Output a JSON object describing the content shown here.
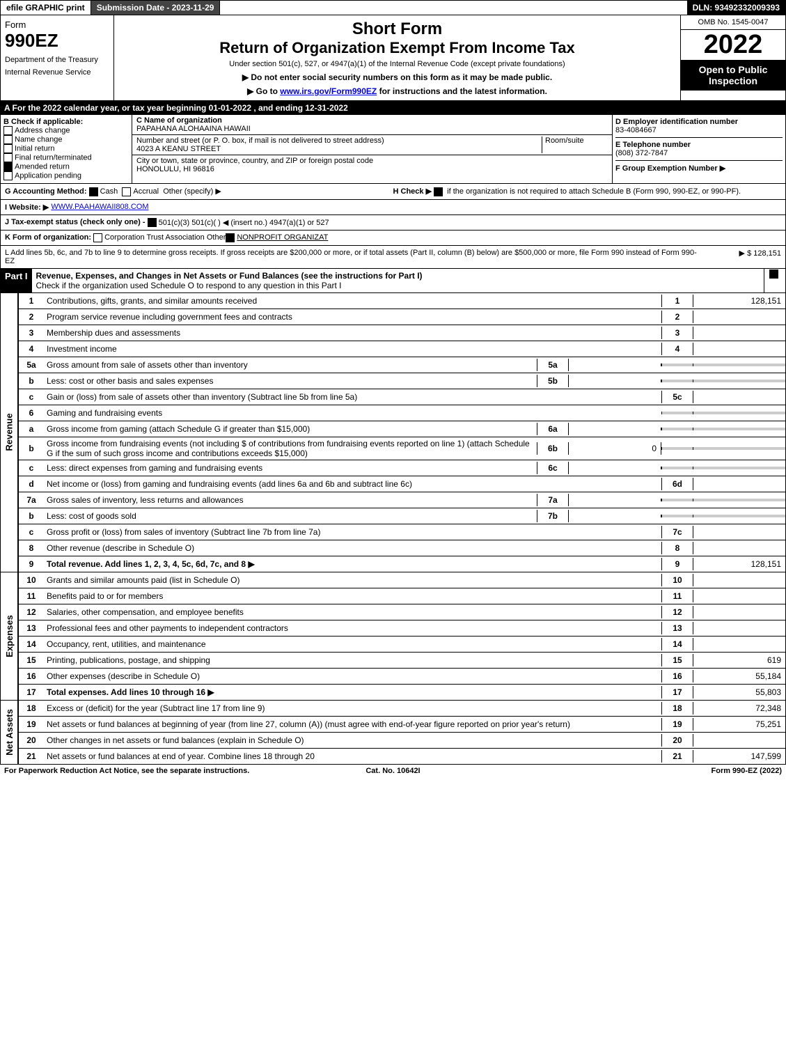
{
  "top": {
    "efile": "efile GRAPHIC print",
    "submission": "Submission Date - 2023-11-29",
    "dln": "DLN: 93492332009393"
  },
  "header": {
    "form_word": "Form",
    "form_num": "990EZ",
    "dept": "Department of the Treasury",
    "irs": "Internal Revenue Service",
    "short_form": "Short Form",
    "title": "Return of Organization Exempt From Income Tax",
    "sub1": "Under section 501(c), 527, or 4947(a)(1) of the Internal Revenue Code (except private foundations)",
    "sub2a": "▶ Do not enter social security numbers on this form as it may be made public.",
    "sub2b_pre": "▶ Go to ",
    "sub2b_link": "www.irs.gov/Form990EZ",
    "sub2b_post": " for instructions and the latest information.",
    "omb": "OMB No. 1545-0047",
    "year": "2022",
    "open": "Open to Public Inspection"
  },
  "lineA": "A  For the 2022 calendar year, or tax year beginning 01-01-2022 , and ending 12-31-2022",
  "B": {
    "label": "B  Check if applicable:",
    "addr": "Address change",
    "name": "Name change",
    "initial": "Initial return",
    "final": "Final return/terminated",
    "amended": "Amended return",
    "pending": "Application pending"
  },
  "C": {
    "name_label": "C Name of organization",
    "name": "PAPAHANA ALOHAAINA HAWAII",
    "street_label": "Number and street (or P. O. box, if mail is not delivered to street address)",
    "room_label": "Room/suite",
    "street": "4023 A KEANU STREET",
    "city_label": "City or town, state or province, country, and ZIP or foreign postal code",
    "city": "HONOLULU, HI  96816"
  },
  "D": {
    "label": "D Employer identification number",
    "value": "83-4084667"
  },
  "E": {
    "label": "E Telephone number",
    "value": "(808) 372-7847"
  },
  "F": {
    "label": "F Group Exemption Number ▶"
  },
  "G": {
    "label": "G Accounting Method:",
    "cash": "Cash",
    "accrual": "Accrual",
    "other": "Other (specify) ▶"
  },
  "H": {
    "label": "H  Check ▶",
    "text": "if the organization is not required to attach Schedule B (Form 990, 990-EZ, or 990-PF)."
  },
  "I": {
    "label": "I Website: ▶",
    "value": "WWW.PAAHAWAII808.COM"
  },
  "J": {
    "label": "J Tax-exempt status (check only one) -",
    "opts": "501(c)(3)   501(c)(  ) ◀ (insert no.)   4947(a)(1) or   527"
  },
  "K": {
    "label": "K Form of organization:",
    "opts": "Corporation   Trust   Association   Other",
    "other_val": "NONPROFIT ORGANIZAT"
  },
  "L": {
    "text": "L Add lines 5b, 6c, and 7b to line 9 to determine gross receipts. If gross receipts are $200,000 or more, or if total assets (Part II, column (B) below) are $500,000 or more, file Form 990 instead of Form 990-EZ",
    "amount": "▶ $ 128,151"
  },
  "part1": {
    "header": "Part I",
    "title": "Revenue, Expenses, and Changes in Net Assets or Fund Balances (see the instructions for Part I)",
    "subtitle": "Check if the organization used Schedule O to respond to any question in this Part I"
  },
  "vLabels": {
    "revenue": "Revenue",
    "expenses": "Expenses",
    "netassets": "Net Assets"
  },
  "lines": {
    "1": {
      "n": "1",
      "d": "Contributions, gifts, grants, and similar amounts received",
      "rn": "1",
      "v": "128,151"
    },
    "2": {
      "n": "2",
      "d": "Program service revenue including government fees and contracts",
      "rn": "2",
      "v": ""
    },
    "3": {
      "n": "3",
      "d": "Membership dues and assessments",
      "rn": "3",
      "v": ""
    },
    "4": {
      "n": "4",
      "d": "Investment income",
      "rn": "4",
      "v": ""
    },
    "5a": {
      "n": "5a",
      "d": "Gross amount from sale of assets other than inventory",
      "in": "5a",
      "iv": ""
    },
    "5b": {
      "n": "b",
      "d": "Less: cost or other basis and sales expenses",
      "in": "5b",
      "iv": ""
    },
    "5c": {
      "n": "c",
      "d": "Gain or (loss) from sale of assets other than inventory (Subtract line 5b from line 5a)",
      "rn": "5c",
      "v": ""
    },
    "6": {
      "n": "6",
      "d": "Gaming and fundraising events"
    },
    "6a": {
      "n": "a",
      "d": "Gross income from gaming (attach Schedule G if greater than $15,000)",
      "in": "6a",
      "iv": ""
    },
    "6b": {
      "n": "b",
      "d": "Gross income from fundraising events (not including $               of contributions from fundraising events reported on line 1) (attach Schedule G if the sum of such gross income and contributions exceeds $15,000)",
      "in": "6b",
      "iv": "0"
    },
    "6c": {
      "n": "c",
      "d": "Less: direct expenses from gaming and fundraising events",
      "in": "6c",
      "iv": ""
    },
    "6d": {
      "n": "d",
      "d": "Net income or (loss) from gaming and fundraising events (add lines 6a and 6b and subtract line 6c)",
      "rn": "6d",
      "v": ""
    },
    "7a": {
      "n": "7a",
      "d": "Gross sales of inventory, less returns and allowances",
      "in": "7a",
      "iv": ""
    },
    "7b": {
      "n": "b",
      "d": "Less: cost of goods sold",
      "in": "7b",
      "iv": ""
    },
    "7c": {
      "n": "c",
      "d": "Gross profit or (loss) from sales of inventory (Subtract line 7b from line 7a)",
      "rn": "7c",
      "v": ""
    },
    "8": {
      "n": "8",
      "d": "Other revenue (describe in Schedule O)",
      "rn": "8",
      "v": ""
    },
    "9": {
      "n": "9",
      "d": "Total revenue. Add lines 1, 2, 3, 4, 5c, 6d, 7c, and 8   ▶",
      "rn": "9",
      "v": "128,151",
      "bold": true
    },
    "10": {
      "n": "10",
      "d": "Grants and similar amounts paid (list in Schedule O)",
      "rn": "10",
      "v": ""
    },
    "11": {
      "n": "11",
      "d": "Benefits paid to or for members",
      "rn": "11",
      "v": ""
    },
    "12": {
      "n": "12",
      "d": "Salaries, other compensation, and employee benefits",
      "rn": "12",
      "v": ""
    },
    "13": {
      "n": "13",
      "d": "Professional fees and other payments to independent contractors",
      "rn": "13",
      "v": ""
    },
    "14": {
      "n": "14",
      "d": "Occupancy, rent, utilities, and maintenance",
      "rn": "14",
      "v": ""
    },
    "15": {
      "n": "15",
      "d": "Printing, publications, postage, and shipping",
      "rn": "15",
      "v": "619"
    },
    "16": {
      "n": "16",
      "d": "Other expenses (describe in Schedule O)",
      "rn": "16",
      "v": "55,184"
    },
    "17": {
      "n": "17",
      "d": "Total expenses. Add lines 10 through 16   ▶",
      "rn": "17",
      "v": "55,803",
      "bold": true
    },
    "18": {
      "n": "18",
      "d": "Excess or (deficit) for the year (Subtract line 17 from line 9)",
      "rn": "18",
      "v": "72,348"
    },
    "19": {
      "n": "19",
      "d": "Net assets or fund balances at beginning of year (from line 27, column (A)) (must agree with end-of-year figure reported on prior year's return)",
      "rn": "19",
      "v": "75,251"
    },
    "20": {
      "n": "20",
      "d": "Other changes in net assets or fund balances (explain in Schedule O)",
      "rn": "20",
      "v": ""
    },
    "21": {
      "n": "21",
      "d": "Net assets or fund balances at end of year. Combine lines 18 through 20",
      "rn": "21",
      "v": "147,599"
    }
  },
  "footer": {
    "left": "For Paperwork Reduction Act Notice, see the separate instructions.",
    "center": "Cat. No. 10642I",
    "right": "Form 990-EZ (2022)"
  },
  "colors": {
    "black": "#000000",
    "white": "#ffffff",
    "grey": "#cccccc",
    "darkgrey": "#444444",
    "link": "#0000ee"
  }
}
